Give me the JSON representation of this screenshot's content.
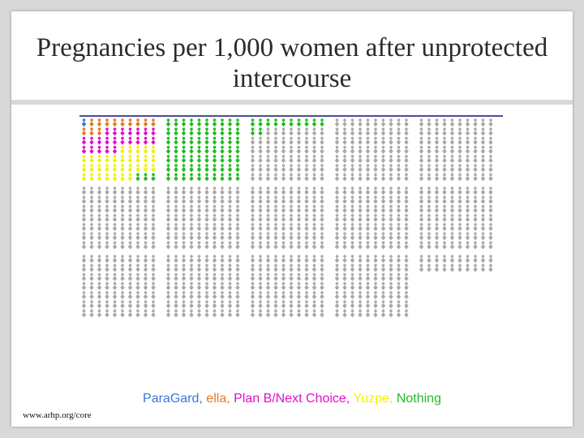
{
  "slide": {
    "title": "Pregnancies per 1,000 women after unprotected intercourse",
    "source": "www.arhp.org/core"
  },
  "chart_data": {
    "type": "pictogram",
    "total": 1000,
    "base_color": "#a9a9a9",
    "series": [
      {
        "name": "ParaGard",
        "color": "#3b78d8",
        "value": 1
      },
      {
        "name": "ella",
        "color": "#e07b24",
        "value": 12
      },
      {
        "name": "Plan B/Next Choice",
        "color": "#e010c8",
        "value": 22
      },
      {
        "name": "Yuzpe",
        "color": "#f2f200",
        "value": 32
      },
      {
        "name": "Nothing",
        "color": "#22bb22",
        "value": 85
      }
    ]
  },
  "legend": {
    "items": [
      {
        "text": "ParaGard",
        "sep": ", ",
        "color": "#3b78d8"
      },
      {
        "text": "ella",
        "sep": ", ",
        "color": "#e07b24"
      },
      {
        "text": "Plan B/Next Choice",
        "sep": ", ",
        "color": "#e010c8"
      },
      {
        "text": "Yuzpe",
        "sep": ", ",
        "color": "#f2f200"
      },
      {
        "text": "Nothing",
        "sep": "",
        "color": "#22bb22"
      }
    ]
  }
}
